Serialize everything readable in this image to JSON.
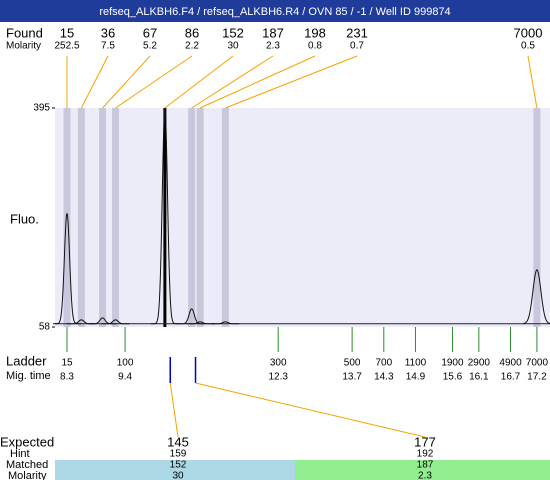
{
  "header": {
    "title": "refseq_ALKBH6.F4 / refseq_ALKBH6.R4 / OVN 85 / -1 / Well ID 999874"
  },
  "found": {
    "label": "Found",
    "molarity_label": "Molarity",
    "peaks": [
      {
        "size": 15,
        "molarity": 252.5,
        "fluo": 233
      },
      {
        "size": 36,
        "molarity": 7.5,
        "fluo": 69
      },
      {
        "size": 67,
        "molarity": 5.2,
        "fluo": 72
      },
      {
        "size": 86,
        "molarity": 2.2,
        "fluo": 69
      },
      {
        "size": 152,
        "molarity": 30,
        "fluo": 395
      },
      {
        "size": 187,
        "molarity": 2.3,
        "fluo": 86
      },
      {
        "size": 198,
        "molarity": 0.8,
        "fluo": 66
      },
      {
        "size": 231,
        "molarity": 0.7,
        "fluo": 66
      },
      {
        "size": 7000,
        "molarity": 0.5,
        "fluo": 146
      }
    ]
  },
  "fluo_axis": {
    "label": "Fluo.",
    "ylim": [
      58,
      395
    ],
    "yticks": [
      58,
      395
    ],
    "baseline_fluo": 63
  },
  "ladder": {
    "label": "Ladder",
    "mig_time_label": "Mig. time",
    "sizes": [
      15,
      100,
      300,
      500,
      700,
      1100,
      1900,
      2900,
      4900,
      7000
    ],
    "mig_times": [
      8.3,
      9.4,
      12.3,
      13.7,
      14.3,
      14.9,
      15.6,
      16.1,
      16.7,
      17.2
    ]
  },
  "expected": {
    "label": "Expected",
    "hint_label": "Hint",
    "matched_label": "Matched",
    "molarity_label": "Molarity",
    "items": [
      {
        "expected": 145,
        "hint": 159,
        "matched": 152,
        "molarity": 30
      },
      {
        "expected": 177,
        "hint": 192,
        "matched": 187,
        "molarity": 2.3
      }
    ]
  }
}
